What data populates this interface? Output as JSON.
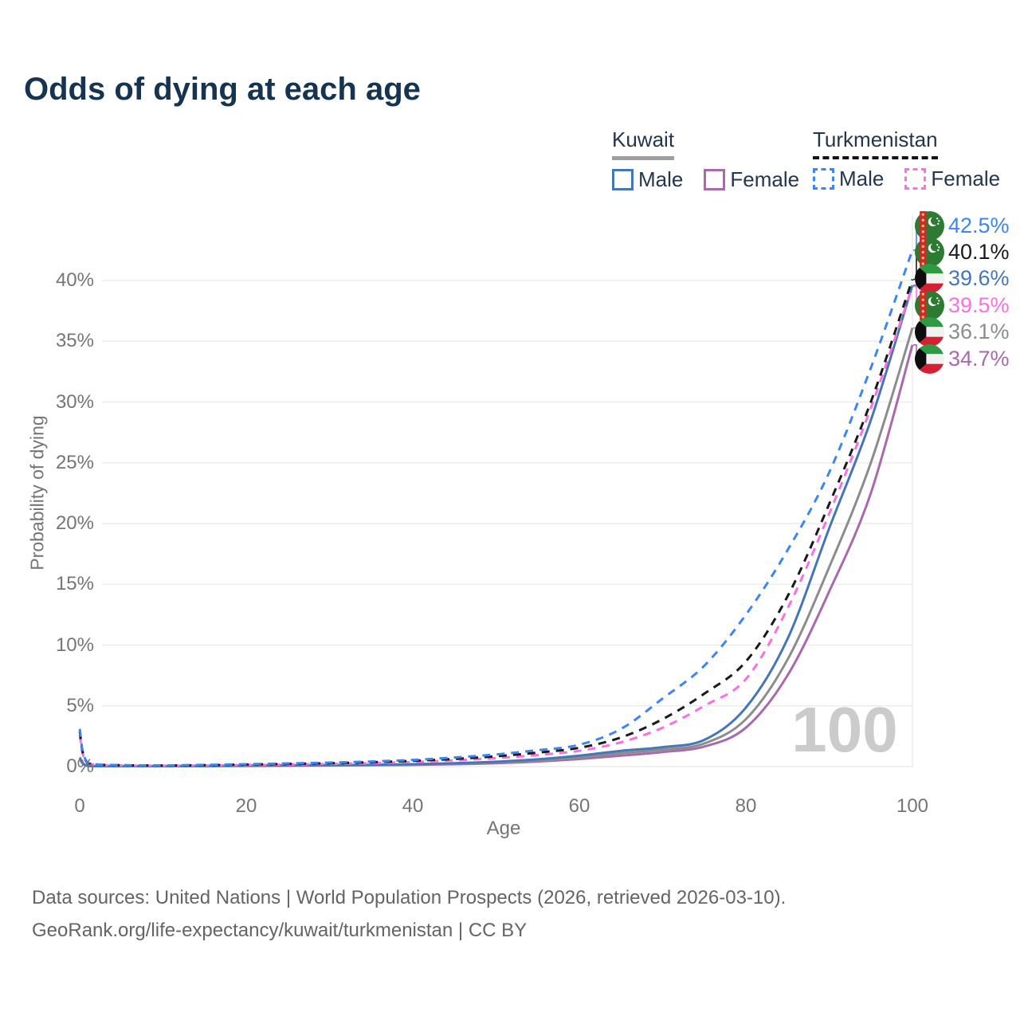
{
  "title": "Odds of dying at each age",
  "legend": {
    "groups": [
      {
        "country": "Kuwait",
        "underline": "solid",
        "underline_color": "#9e9e9e",
        "items": [
          {
            "label": "Male",
            "color": "#4576b5",
            "dashed": false
          },
          {
            "label": "Female",
            "color": "#a869ad",
            "dashed": false
          }
        ]
      },
      {
        "country": "Turkmenistan",
        "underline": "dashed",
        "underline_color": "#141414",
        "items": [
          {
            "label": "Male",
            "color": "#3d85f0",
            "dashed": true
          },
          {
            "label": "Female",
            "color": "#fb6fe3",
            "dashed": true
          }
        ]
      }
    ]
  },
  "chart_data": {
    "type": "line",
    "title": "Odds of dying at each age",
    "xlabel": "Age",
    "ylabel": "Probability of dying",
    "xlim": [
      0,
      100
    ],
    "ylim_pct": [
      0,
      44
    ],
    "x_ticks": [
      0,
      20,
      40,
      60,
      80,
      100
    ],
    "y_ticks_pct": [
      0,
      5,
      10,
      15,
      20,
      25,
      30,
      35,
      40
    ],
    "grid": "horizontal",
    "gridline_color": "#ececec",
    "watermark": "100",
    "ages": [
      0,
      1,
      5,
      10,
      15,
      20,
      25,
      30,
      35,
      40,
      45,
      50,
      55,
      60,
      65,
      70,
      75,
      80,
      85,
      90,
      95,
      100
    ],
    "series": [
      {
        "name": "Kuwait Female",
        "country": "Kuwait",
        "sex": "Female",
        "color": "#a869ad",
        "dash": false,
        "values_pct": [
          0.65,
          0.05,
          0.03,
          0.03,
          0.04,
          0.05,
          0.07,
          0.09,
          0.11,
          0.14,
          0.2,
          0.28,
          0.42,
          0.62,
          0.9,
          1.2,
          1.65,
          3.2,
          7.5,
          14.4,
          22.5,
          34.7
        ]
      },
      {
        "name": "Kuwait",
        "country": "Kuwait",
        "sex": "Both",
        "color": "#8c8c8c",
        "dash": false,
        "values_pct": [
          0.7,
          0.06,
          0.03,
          0.03,
          0.05,
          0.07,
          0.09,
          0.11,
          0.13,
          0.17,
          0.24,
          0.34,
          0.5,
          0.75,
          1.1,
          1.4,
          1.9,
          3.9,
          8.8,
          16.4,
          25.0,
          36.1
        ]
      },
      {
        "name": "Kuwait Male",
        "country": "Kuwait",
        "sex": "Male",
        "color": "#4576b5",
        "dash": false,
        "values_pct": [
          0.75,
          0.06,
          0.03,
          0.03,
          0.05,
          0.08,
          0.1,
          0.12,
          0.15,
          0.2,
          0.28,
          0.4,
          0.6,
          0.9,
          1.3,
          1.6,
          2.2,
          4.85,
          10.5,
          19.6,
          28.5,
          39.6
        ]
      },
      {
        "name": "Turkmenistan Female",
        "country": "Turkmenistan",
        "sex": "Female",
        "color": "#fb6fe3",
        "dash": true,
        "values_pct": [
          2.6,
          0.24,
          0.1,
          0.08,
          0.1,
          0.13,
          0.17,
          0.22,
          0.28,
          0.38,
          0.52,
          0.7,
          0.95,
          1.3,
          2.0,
          3.2,
          5.0,
          7.2,
          13.0,
          20.8,
          29.5,
          39.5
        ]
      },
      {
        "name": "Turkmenistan",
        "country": "Turkmenistan",
        "sex": "Both",
        "color": "#1a1a1a",
        "dash": true,
        "values_pct": [
          2.9,
          0.27,
          0.11,
          0.09,
          0.12,
          0.17,
          0.22,
          0.28,
          0.36,
          0.47,
          0.63,
          0.85,
          1.15,
          1.55,
          2.4,
          3.9,
          6.0,
          8.65,
          14.0,
          21.6,
          30.0,
          40.1
        ]
      },
      {
        "name": "Turkmenistan Male",
        "country": "Turkmenistan",
        "sex": "Male",
        "color": "#3d85f0",
        "dash": true,
        "values_pct": [
          3.1,
          0.3,
          0.12,
          0.1,
          0.14,
          0.2,
          0.26,
          0.33,
          0.42,
          0.55,
          0.75,
          1.0,
          1.35,
          1.8,
          3.1,
          5.6,
          8.3,
          12.5,
          17.8,
          24.2,
          32.8,
          42.5
        ]
      }
    ],
    "end_labels": [
      {
        "text": "42.5%",
        "series_index": 5,
        "flag": "turkmenistan"
      },
      {
        "text": "40.1%",
        "series_index": 4,
        "flag": "turkmenistan"
      },
      {
        "text": "39.6%",
        "series_index": 2,
        "flag": "kuwait"
      },
      {
        "text": "39.5%",
        "series_index": 3,
        "flag": "turkmenistan"
      },
      {
        "text": "36.1%",
        "series_index": 1,
        "flag": "kuwait"
      },
      {
        "text": "34.7%",
        "series_index": 0,
        "flag": "kuwait"
      }
    ]
  },
  "footer": {
    "line1": "Data sources: United Nations | World Population Prospects (2026, retrieved 2026-03-10).",
    "line2": "GeoRank.org/life-expectancy/kuwait/turkmenistan | CC BY"
  }
}
